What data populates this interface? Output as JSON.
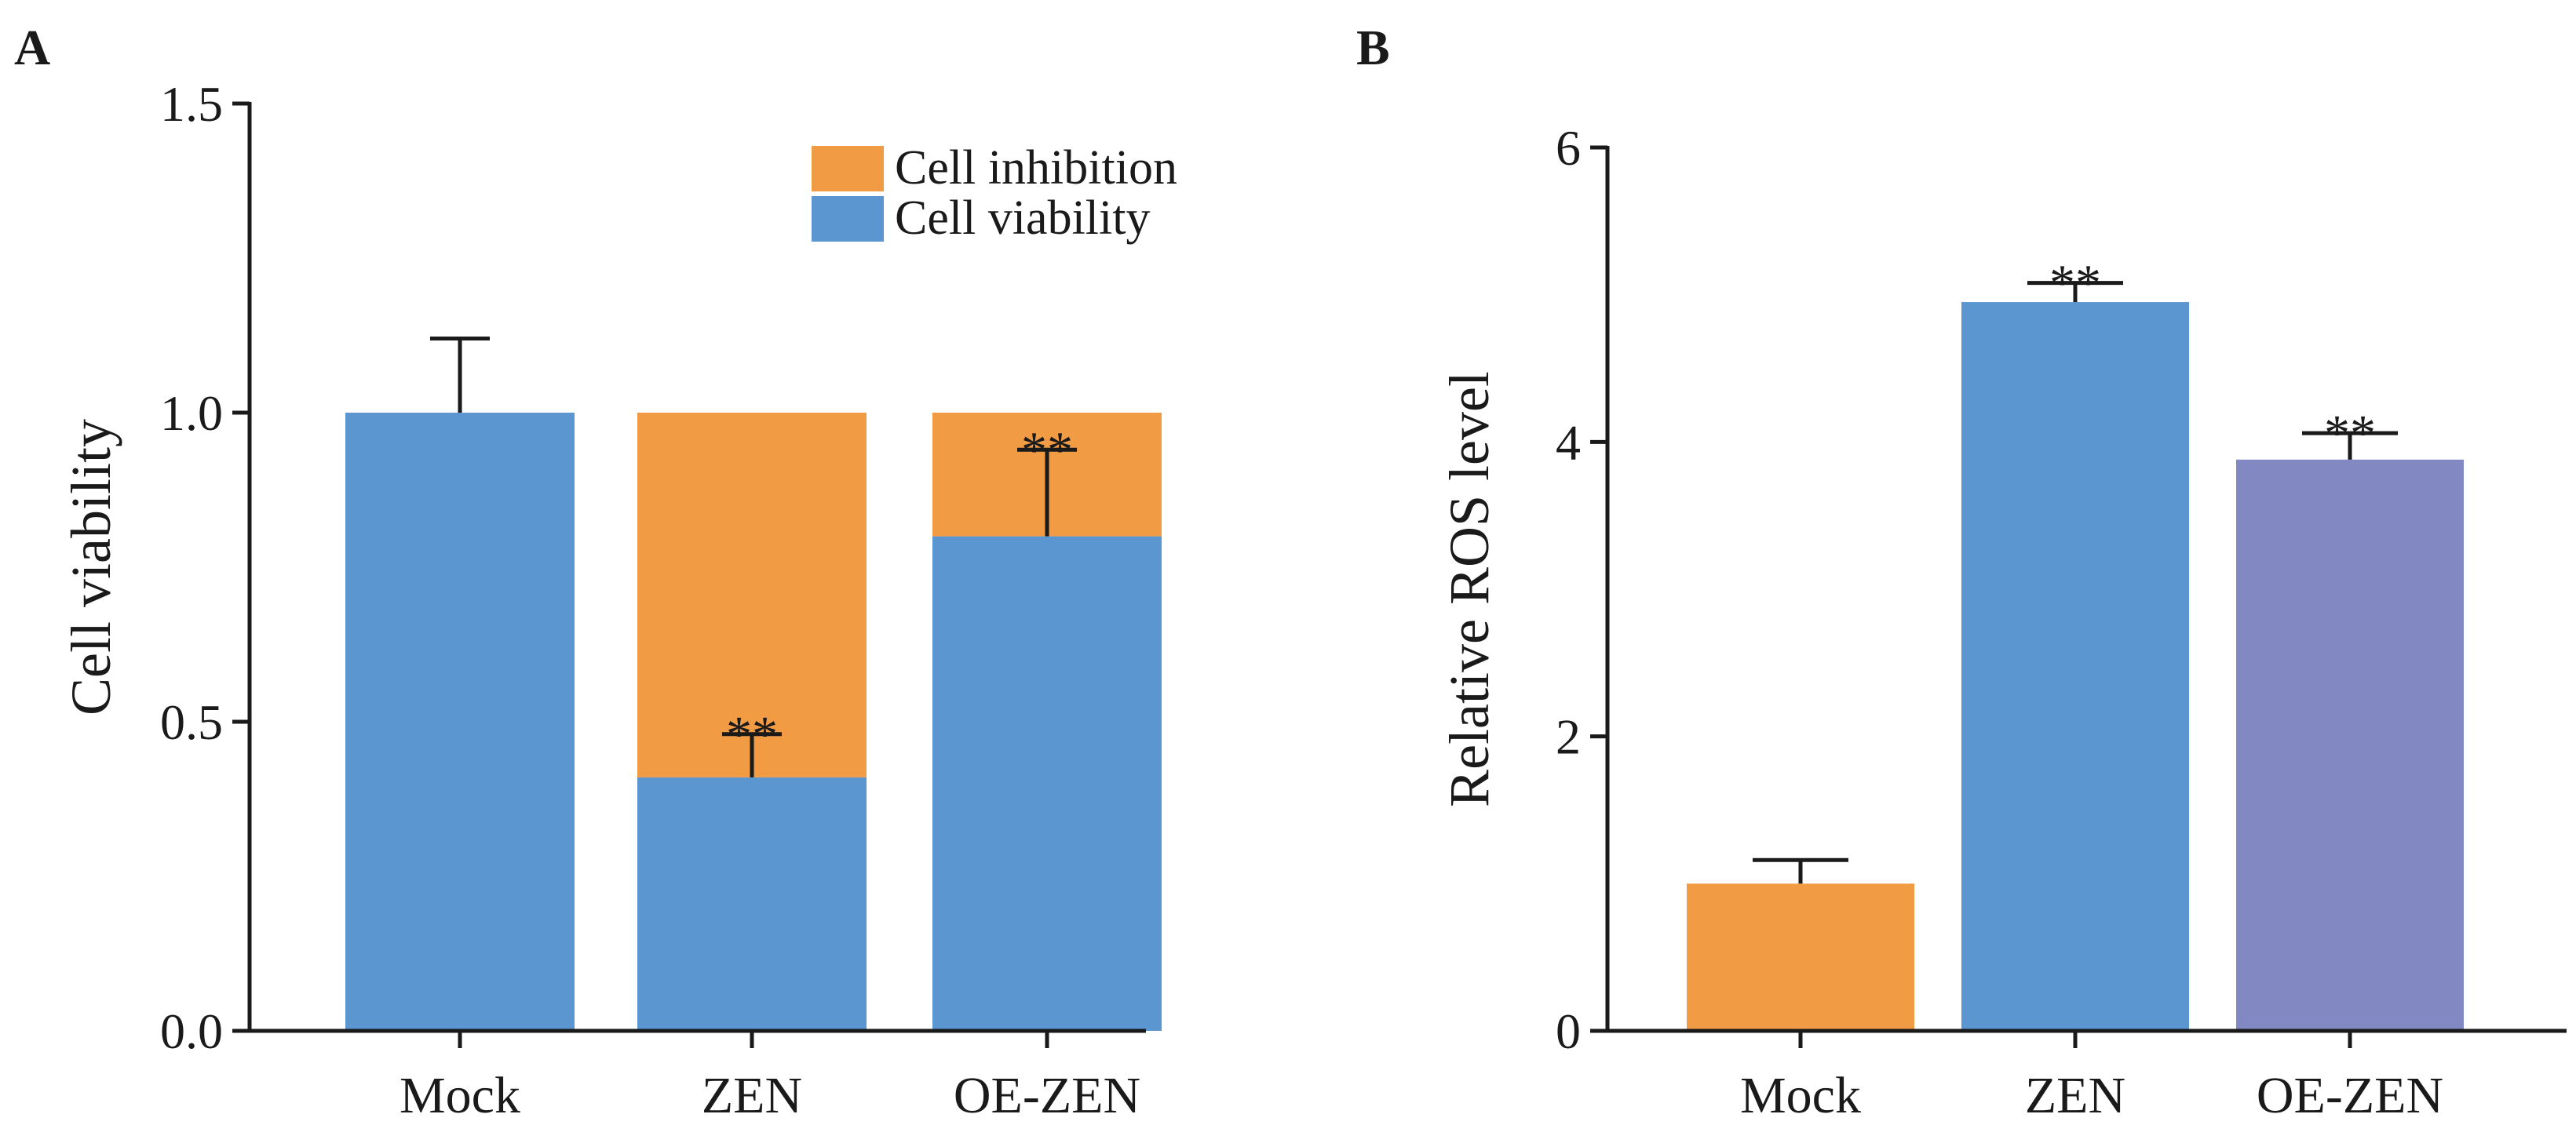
{
  "colors": {
    "cell_viability": "#5b96d1",
    "cell_inhibition": "#f29b45",
    "mock_ros": "#f29b45",
    "zen_ros": "#5b96d1",
    "oe_zen_ros": "#8188c2",
    "axis": "#1a1a1a"
  },
  "chart_data": [
    {
      "panel": "A",
      "type": "bar",
      "stacked": true,
      "categories": [
        "Mock",
        "ZEN",
        "OE-ZEN"
      ],
      "series": [
        {
          "name": "Cell viability",
          "values": [
            1.0,
            0.41,
            0.8
          ],
          "color_key": "cell_viability"
        },
        {
          "name": "Cell inhibition",
          "values": [
            0.0,
            0.59,
            0.2
          ],
          "color_key": "cell_inhibition"
        }
      ],
      "error_bars": [
        {
          "category": "Mock",
          "base": 1.0,
          "top": 1.12
        },
        {
          "category": "ZEN",
          "base": 0.41,
          "top": 0.48
        },
        {
          "category": "OE-ZEN",
          "base": 0.8,
          "top": 0.94
        }
      ],
      "annotations": [
        {
          "category": "ZEN",
          "text": "**",
          "at": 0.48
        },
        {
          "category": "OE-ZEN",
          "text": "**",
          "at": 0.94
        }
      ],
      "ylabel": "Cell viability",
      "xlabel": "",
      "ylim": [
        0,
        1.5
      ],
      "yticks": [
        "0.0",
        "0.5",
        "1.0",
        "1.5"
      ],
      "ytick_values": [
        0,
        0.5,
        1.0,
        1.5
      ],
      "legend": [
        {
          "label": "Cell inhibition",
          "color_key": "cell_inhibition"
        },
        {
          "label": "Cell viability",
          "color_key": "cell_viability"
        }
      ],
      "legend_position": "top-right"
    },
    {
      "panel": "B",
      "type": "bar",
      "stacked": false,
      "categories": [
        "Mock",
        "ZEN",
        "OE-ZEN"
      ],
      "values": [
        1.0,
        4.95,
        3.88
      ],
      "color_keys": [
        "mock_ros",
        "zen_ros",
        "oe_zen_ros"
      ],
      "error_bars": [
        {
          "category": "Mock",
          "base": 1.0,
          "top": 1.16
        },
        {
          "category": "ZEN",
          "base": 4.95,
          "top": 5.08
        },
        {
          "category": "OE-ZEN",
          "base": 3.88,
          "top": 4.06
        }
      ],
      "annotations": [
        {
          "category": "ZEN",
          "text": "**",
          "at": 5.08
        },
        {
          "category": "OE-ZEN",
          "text": "**",
          "at": 4.06
        }
      ],
      "ylabel": "Relative ROS level",
      "xlabel": "",
      "ylim": [
        0,
        6
      ],
      "yticks": [
        "0",
        "2",
        "4",
        "6"
      ],
      "ytick_values": [
        0,
        2,
        4,
        6
      ]
    }
  ]
}
